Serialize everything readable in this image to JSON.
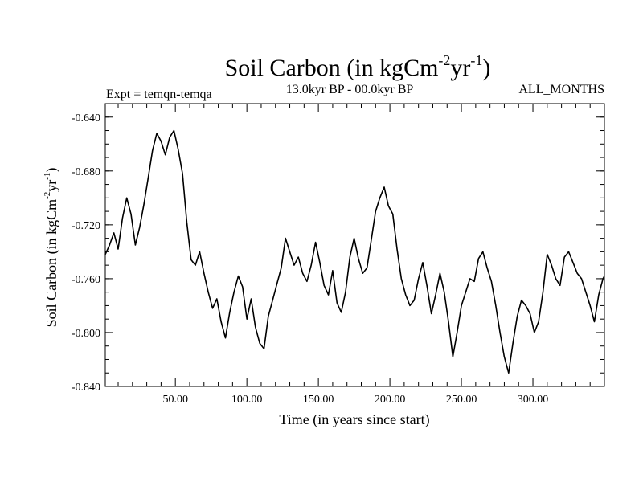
{
  "chart_data": {
    "type": "line",
    "title_main": "Soil Carbon (in kgCm",
    "title_sup1": "-2",
    "title_mid": "yr",
    "title_sup2": "-1",
    "title_end": ")",
    "subtitle_left": "Expt = temqn-temqa",
    "subtitle_center": "13.0kyr BP - 00.0kyr BP",
    "subtitle_right": "ALL_MONTHS",
    "xlabel": "Time (in years since start)",
    "ylabel_main": "Soil Carbon (in kgCm",
    "ylabel_sup1": "-2",
    "ylabel_mid": "yr",
    "ylabel_sup2": "-1",
    "ylabel_end": ")",
    "xlim": [
      1,
      350
    ],
    "ylim": [
      -0.84,
      -0.63
    ],
    "x_ticks": [
      {
        "value": 50,
        "label": "50.00"
      },
      {
        "value": 100,
        "label": "100.00"
      },
      {
        "value": 150,
        "label": "150.00"
      },
      {
        "value": 200,
        "label": "200.00"
      },
      {
        "value": 250,
        "label": "250.00"
      },
      {
        "value": 300,
        "label": "300.00"
      }
    ],
    "y_ticks": [
      {
        "value": -0.64,
        "label": "-0.640"
      },
      {
        "value": -0.68,
        "label": "-0.680"
      },
      {
        "value": -0.72,
        "label": "-0.720"
      },
      {
        "value": -0.76,
        "label": "-0.760"
      },
      {
        "value": -0.8,
        "label": "-0.800"
      },
      {
        "value": -0.84,
        "label": "-0.840"
      }
    ],
    "series": [
      {
        "color": "#000000",
        "x": [
          1,
          4,
          7,
          10,
          13,
          16,
          19,
          22,
          25,
          28,
          31,
          34,
          37,
          40,
          43,
          46,
          49,
          52,
          55,
          58,
          61,
          64,
          67,
          70,
          73,
          76,
          79,
          82,
          85,
          88,
          91,
          94,
          97,
          100,
          103,
          106,
          109,
          112,
          115,
          118,
          121,
          124,
          127,
          130,
          133,
          136,
          139,
          142,
          145,
          148,
          151,
          154,
          157,
          160,
          163,
          166,
          169,
          172,
          175,
          178,
          181,
          184,
          187,
          190,
          193,
          196,
          199,
          202,
          205,
          208,
          211,
          214,
          217,
          220,
          223,
          226,
          229,
          232,
          235,
          238,
          241,
          244,
          247,
          250,
          253,
          256,
          259,
          262,
          265,
          268,
          271,
          274,
          277,
          280,
          283,
          286,
          289,
          292,
          295,
          298,
          301,
          304,
          307,
          310,
          313,
          316,
          319,
          322,
          325,
          328,
          331,
          334,
          337,
          340,
          343,
          346,
          349,
          350
        ],
        "y": [
          -0.742,
          -0.735,
          -0.726,
          -0.738,
          -0.715,
          -0.7,
          -0.712,
          -0.735,
          -0.722,
          -0.705,
          -0.685,
          -0.665,
          -0.652,
          -0.658,
          -0.668,
          -0.655,
          -0.65,
          -0.664,
          -0.682,
          -0.718,
          -0.746,
          -0.75,
          -0.74,
          -0.756,
          -0.77,
          -0.782,
          -0.775,
          -0.792,
          -0.804,
          -0.785,
          -0.77,
          -0.758,
          -0.766,
          -0.79,
          -0.775,
          -0.796,
          -0.808,
          -0.812,
          -0.788,
          -0.776,
          -0.764,
          -0.752,
          -0.73,
          -0.74,
          -0.75,
          -0.744,
          -0.756,
          -0.762,
          -0.75,
          -0.733,
          -0.748,
          -0.765,
          -0.772,
          -0.754,
          -0.778,
          -0.785,
          -0.77,
          -0.744,
          -0.73,
          -0.745,
          -0.756,
          -0.752,
          -0.731,
          -0.71,
          -0.7,
          -0.692,
          -0.706,
          -0.712,
          -0.738,
          -0.76,
          -0.772,
          -0.78,
          -0.776,
          -0.76,
          -0.748,
          -0.766,
          -0.786,
          -0.772,
          -0.756,
          -0.77,
          -0.792,
          -0.818,
          -0.8,
          -0.78,
          -0.77,
          -0.76,
          -0.762,
          -0.745,
          -0.74,
          -0.752,
          -0.762,
          -0.78,
          -0.8,
          -0.818,
          -0.83,
          -0.808,
          -0.788,
          -0.776,
          -0.78,
          -0.786,
          -0.8,
          -0.792,
          -0.77,
          -0.742,
          -0.75,
          -0.76,
          -0.765,
          -0.744,
          -0.74,
          -0.748,
          -0.756,
          -0.76,
          -0.77,
          -0.78,
          -0.792,
          -0.772,
          -0.76,
          -0.758
        ]
      }
    ]
  }
}
